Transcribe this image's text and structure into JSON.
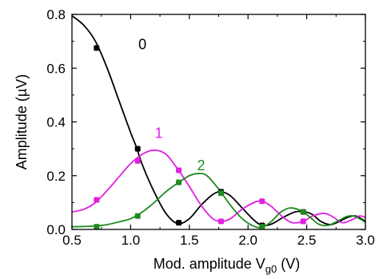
{
  "chart_data": {
    "type": "line",
    "xlabel": "Mod. amplitude V",
    "xlabel_sub": "g0",
    "xlabel_unit": " (V)",
    "ylabel": "Amplitude (µV)",
    "xlim": [
      0.5,
      3.0
    ],
    "ylim": [
      0.0,
      0.8
    ],
    "x_ticks": [
      "0.5",
      "1.0",
      "1.5",
      "2.0",
      "2.5",
      "3.0"
    ],
    "y_ticks": [
      "0.0",
      "0.2",
      "0.4",
      "0.6",
      "0.8"
    ],
    "grid": false,
    "series": [
      {
        "name": "0",
        "color": "#000000",
        "points": [
          [
            0.71,
            0.675
          ],
          [
            1.06,
            0.3
          ],
          [
            1.41,
            0.025
          ],
          [
            1.77,
            0.14
          ],
          [
            2.12,
            0.015
          ],
          [
            2.47,
            0.065
          ]
        ],
        "curve": [
          [
            0.5,
            0.795
          ],
          [
            0.6,
            0.76
          ],
          [
            0.7,
            0.7
          ],
          [
            0.8,
            0.6
          ],
          [
            0.9,
            0.48
          ],
          [
            1.0,
            0.36
          ],
          [
            1.05,
            0.305
          ],
          [
            1.1,
            0.24
          ],
          [
            1.2,
            0.14
          ],
          [
            1.3,
            0.06
          ],
          [
            1.4,
            0.022
          ],
          [
            1.5,
            0.04
          ],
          [
            1.6,
            0.09
          ],
          [
            1.7,
            0.13
          ],
          [
            1.77,
            0.14
          ],
          [
            1.85,
            0.125
          ],
          [
            1.95,
            0.08
          ],
          [
            2.05,
            0.035
          ],
          [
            2.12,
            0.015
          ],
          [
            2.2,
            0.02
          ],
          [
            2.3,
            0.045
          ],
          [
            2.4,
            0.065
          ],
          [
            2.48,
            0.066
          ],
          [
            2.55,
            0.055
          ],
          [
            2.62,
            0.03
          ],
          [
            2.7,
            0.018
          ],
          [
            2.78,
            0.03
          ],
          [
            2.85,
            0.045
          ],
          [
            2.92,
            0.05
          ],
          [
            3.0,
            0.03
          ]
        ]
      },
      {
        "name": "1",
        "color": "#e020e0",
        "points": [
          [
            0.71,
            0.11
          ],
          [
            1.06,
            0.255
          ],
          [
            1.41,
            0.22
          ],
          [
            1.77,
            0.03
          ],
          [
            2.12,
            0.105
          ],
          [
            2.47,
            0.03
          ]
        ],
        "curve": [
          [
            0.5,
            0.065
          ],
          [
            0.6,
            0.075
          ],
          [
            0.7,
            0.1
          ],
          [
            0.8,
            0.145
          ],
          [
            0.9,
            0.195
          ],
          [
            1.0,
            0.245
          ],
          [
            1.1,
            0.28
          ],
          [
            1.2,
            0.295
          ],
          [
            1.3,
            0.28
          ],
          [
            1.4,
            0.225
          ],
          [
            1.5,
            0.16
          ],
          [
            1.6,
            0.09
          ],
          [
            1.7,
            0.04
          ],
          [
            1.78,
            0.03
          ],
          [
            1.85,
            0.04
          ],
          [
            1.95,
            0.075
          ],
          [
            2.05,
            0.1
          ],
          [
            2.12,
            0.105
          ],
          [
            2.2,
            0.085
          ],
          [
            2.3,
            0.045
          ],
          [
            2.38,
            0.025
          ],
          [
            2.47,
            0.03
          ],
          [
            2.55,
            0.05
          ],
          [
            2.65,
            0.06
          ],
          [
            2.73,
            0.045
          ],
          [
            2.8,
            0.025
          ],
          [
            2.88,
            0.035
          ],
          [
            2.95,
            0.05
          ],
          [
            3.0,
            0.045
          ]
        ]
      },
      {
        "name": "2",
        "color": "#1f8a1f",
        "points": [
          [
            0.71,
            0.01
          ],
          [
            1.06,
            0.05
          ],
          [
            1.41,
            0.175
          ],
          [
            1.77,
            0.135
          ],
          [
            2.12,
            0.01
          ],
          [
            2.47,
            0.065
          ]
        ],
        "curve": [
          [
            0.5,
            0.01
          ],
          [
            0.6,
            0.011
          ],
          [
            0.7,
            0.013
          ],
          [
            0.8,
            0.018
          ],
          [
            0.9,
            0.028
          ],
          [
            1.0,
            0.04
          ],
          [
            1.1,
            0.065
          ],
          [
            1.2,
            0.1
          ],
          [
            1.3,
            0.14
          ],
          [
            1.4,
            0.172
          ],
          [
            1.5,
            0.2
          ],
          [
            1.58,
            0.208
          ],
          [
            1.65,
            0.2
          ],
          [
            1.75,
            0.15
          ],
          [
            1.85,
            0.09
          ],
          [
            1.95,
            0.04
          ],
          [
            2.05,
            0.012
          ],
          [
            2.12,
            0.008
          ],
          [
            2.2,
            0.03
          ],
          [
            2.28,
            0.065
          ],
          [
            2.36,
            0.08
          ],
          [
            2.45,
            0.07
          ],
          [
            2.53,
            0.045
          ],
          [
            2.6,
            0.02
          ],
          [
            2.68,
            0.015
          ],
          [
            2.76,
            0.03
          ],
          [
            2.84,
            0.048
          ],
          [
            2.9,
            0.05
          ],
          [
            2.97,
            0.035
          ],
          [
            3.0,
            0.025
          ]
        ]
      }
    ]
  }
}
